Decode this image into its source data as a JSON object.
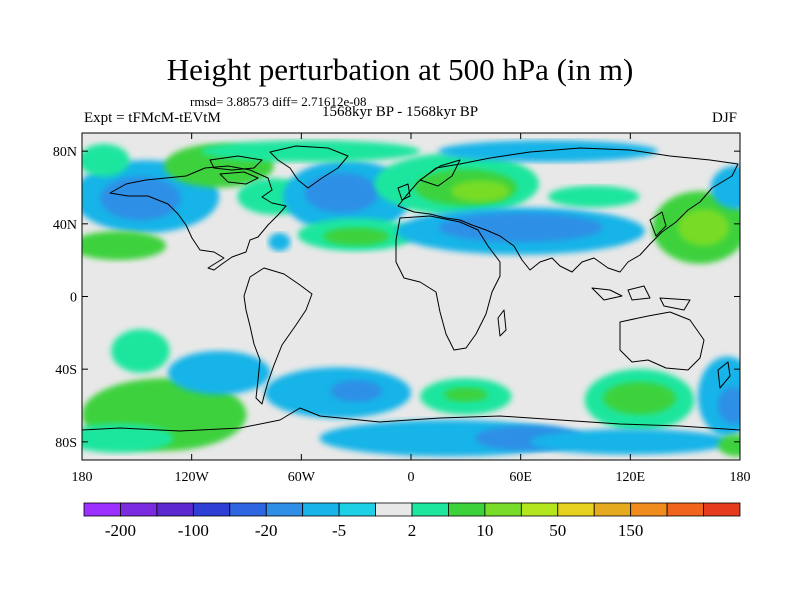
{
  "title": "Height perturbation at 500 hPa (in m)",
  "stats": "rmsd= 3.88573 diff= 2.71612e-08",
  "left_label": "Expt = tFMcM-tEVtM",
  "center_label": "1568kyr BP - 1568kyr BP",
  "right_label": "DJF",
  "axes": {
    "lat_ticks": [
      {
        "label": "80N",
        "value": 80
      },
      {
        "label": "40N",
        "value": 40
      },
      {
        "label": "0",
        "value": 0
      },
      {
        "label": "40S",
        "value": -40
      },
      {
        "label": "80S",
        "value": -80
      }
    ],
    "lon_ticks": [
      {
        "label": "180",
        "value": -180
      },
      {
        "label": "120W",
        "value": -120
      },
      {
        "label": "60W",
        "value": -60
      },
      {
        "label": "0",
        "value": 0
      },
      {
        "label": "60E",
        "value": 60
      },
      {
        "label": "120E",
        "value": 120
      },
      {
        "label": "180",
        "value": 180
      }
    ],
    "lat_range": [
      -90,
      90
    ],
    "lon_range": [
      -180,
      180
    ]
  },
  "colorbar": {
    "colors": [
      "#9b30ff",
      "#7b2be0",
      "#5c28d0",
      "#2f3fd6",
      "#2d66e0",
      "#2f8fe6",
      "#16b4e8",
      "#1ed0e6",
      "#e8e8e8",
      "#1ee69e",
      "#3cd23c",
      "#78dc28",
      "#b4e61e",
      "#e6d21e",
      "#e6aa1e",
      "#f08c1e",
      "#f0641e",
      "#e63c1e"
    ],
    "labels": [
      {
        "text": "-200",
        "boundary": 1
      },
      {
        "text": "-100",
        "boundary": 3
      },
      {
        "text": "-20",
        "boundary": 5
      },
      {
        "text": "-5",
        "boundary": 7
      },
      {
        "text": "2",
        "boundary": 9
      },
      {
        "text": "10",
        "boundary": 11
      },
      {
        "text": "50",
        "boundary": 13
      },
      {
        "text": "150",
        "boundary": 15
      }
    ]
  },
  "field_blobs": [
    {
      "lon": -145,
      "lat": 55,
      "rlon": 40,
      "rlat": 20,
      "color": "#16b4e8"
    },
    {
      "lon": -148,
      "lat": 54,
      "rlon": 22,
      "rlat": 12,
      "color": "#2f8fe6"
    },
    {
      "lon": -160,
      "lat": 28,
      "rlon": 26,
      "rlat": 8,
      "color": "#3cd23c"
    },
    {
      "lon": -168,
      "lat": 75,
      "rlon": 14,
      "rlat": 9,
      "color": "#1ee69e"
    },
    {
      "lon": -105,
      "lat": 72,
      "rlon": 30,
      "rlat": 12,
      "color": "#3cd23c"
    },
    {
      "lon": -75,
      "lat": 55,
      "rlon": 20,
      "rlat": 10,
      "color": "#1ee69e"
    },
    {
      "lon": -35,
      "lat": 55,
      "rlon": 35,
      "rlat": 20,
      "color": "#16b4e8"
    },
    {
      "lon": -38,
      "lat": 57,
      "rlon": 20,
      "rlat": 11,
      "color": "#2f8fe6"
    },
    {
      "lon": -30,
      "lat": 34,
      "rlon": 32,
      "rlat": 9,
      "color": "#1ee69e"
    },
    {
      "lon": -30,
      "lat": 33,
      "rlon": 18,
      "rlat": 5,
      "color": "#3cd23c"
    },
    {
      "lon": -55,
      "lat": 80,
      "rlon": 60,
      "rlat": 6,
      "color": "#1ee69e"
    },
    {
      "lon": -72,
      "lat": 30,
      "rlon": 6,
      "rlat": 5,
      "color": "#16b4e8"
    },
    {
      "lon": 25,
      "lat": 62,
      "rlon": 45,
      "rlat": 17,
      "color": "#1ee69e"
    },
    {
      "lon": 30,
      "lat": 60,
      "rlon": 28,
      "rlat": 10,
      "color": "#3cd23c"
    },
    {
      "lon": 38,
      "lat": 58,
      "rlon": 16,
      "rlat": 6,
      "color": "#78dc28"
    },
    {
      "lon": 75,
      "lat": 80,
      "rlon": 60,
      "rlat": 6,
      "color": "#16b4e8"
    },
    {
      "lon": 100,
      "lat": 55,
      "rlon": 25,
      "rlat": 6,
      "color": "#1ee69e"
    },
    {
      "lon": 60,
      "lat": 36,
      "rlon": 68,
      "rlat": 13,
      "color": "#16b4e8"
    },
    {
      "lon": 60,
      "lat": 38,
      "rlon": 45,
      "rlat": 8,
      "color": "#2f8fe6"
    },
    {
      "lon": 158,
      "lat": 38,
      "rlon": 26,
      "rlat": 20,
      "color": "#3cd23c"
    },
    {
      "lon": 160,
      "lat": 38,
      "rlon": 14,
      "rlat": 10,
      "color": "#78dc28"
    },
    {
      "lon": 178,
      "lat": 60,
      "rlon": 14,
      "rlat": 12,
      "color": "#16b4e8"
    },
    {
      "lon": -135,
      "lat": -65,
      "rlon": 45,
      "rlat": 20,
      "color": "#3cd23c"
    },
    {
      "lon": -148,
      "lat": -30,
      "rlon": 16,
      "rlat": 12,
      "color": "#1ee69e"
    },
    {
      "lon": -105,
      "lat": -42,
      "rlon": 28,
      "rlat": 12,
      "color": "#16b4e8"
    },
    {
      "lon": -160,
      "lat": -78,
      "rlon": 30,
      "rlat": 8,
      "color": "#1ee69e"
    },
    {
      "lon": -40,
      "lat": -53,
      "rlon": 40,
      "rlat": 14,
      "color": "#16b4e8"
    },
    {
      "lon": -30,
      "lat": -52,
      "rlon": 14,
      "rlat": 6,
      "color": "#2f8fe6"
    },
    {
      "lon": 30,
      "lat": -55,
      "rlon": 25,
      "rlat": 10,
      "color": "#1ee69e"
    },
    {
      "lon": 30,
      "lat": -54,
      "rlon": 12,
      "rlat": 4,
      "color": "#3cd23c"
    },
    {
      "lon": 20,
      "lat": -78,
      "rlon": 70,
      "rlat": 10,
      "color": "#16b4e8"
    },
    {
      "lon": 65,
      "lat": -78,
      "rlon": 30,
      "rlat": 7,
      "color": "#2f8fe6"
    },
    {
      "lon": 125,
      "lat": -57,
      "rlon": 30,
      "rlat": 17,
      "color": "#1ee69e"
    },
    {
      "lon": 125,
      "lat": -56,
      "rlon": 20,
      "rlat": 9,
      "color": "#3cd23c"
    },
    {
      "lon": 120,
      "lat": -80,
      "rlon": 55,
      "rlat": 7,
      "color": "#16b4e8"
    },
    {
      "lon": 173,
      "lat": -55,
      "rlon": 16,
      "rlat": 22,
      "color": "#16b4e8"
    },
    {
      "lon": 176,
      "lat": -60,
      "rlon": 8,
      "rlat": 10,
      "color": "#2f8fe6"
    },
    {
      "lon": 178,
      "lat": -82,
      "rlon": 10,
      "rlat": 6,
      "color": "#3cd23c"
    }
  ]
}
